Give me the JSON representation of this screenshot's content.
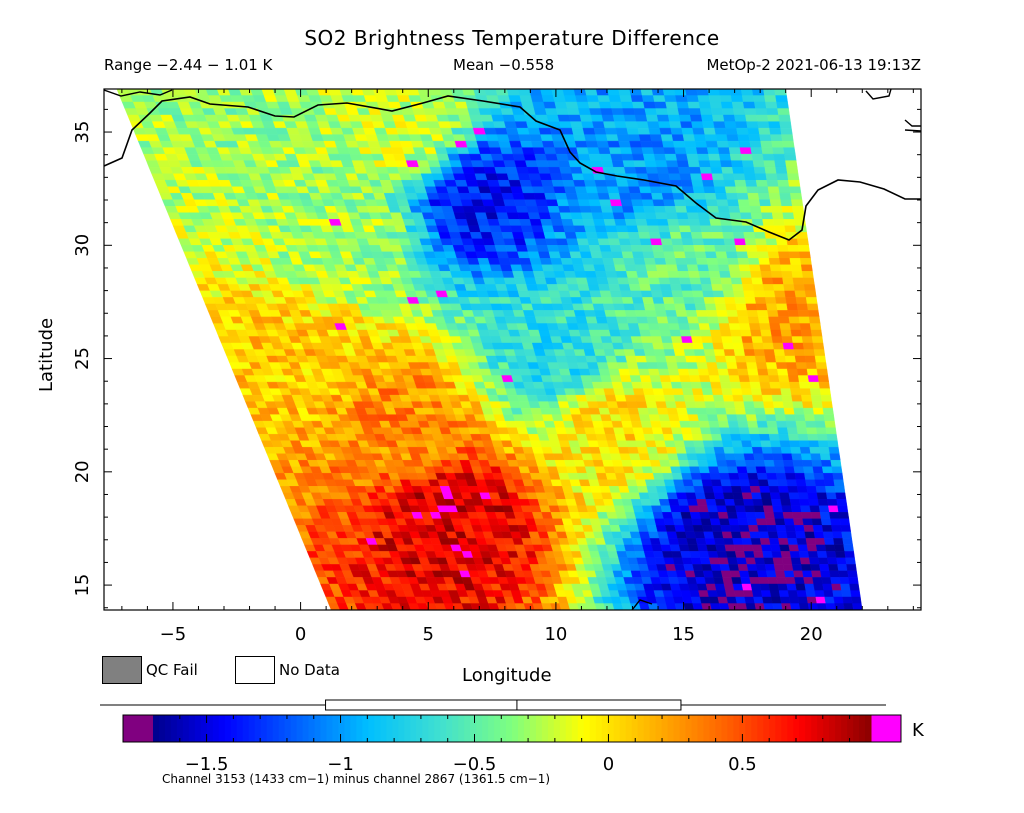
{
  "header": {
    "title": "SO2 Brightness Temperature Difference",
    "range": "Range −2.44 − 1.01 K",
    "mean": "Mean −0.558",
    "satellite": "MetOp-2 2021-06-13 19:13Z"
  },
  "axes": {
    "x_label": "Longitude",
    "y_label": "Latitude",
    "x_range": [
      -7.7,
      24.3
    ],
    "y_range": [
      13.9,
      36.9
    ],
    "x_ticks": [
      -5,
      0,
      5,
      10,
      15,
      20
    ],
    "x_tick_labels": [
      "−5",
      "0",
      "5",
      "10",
      "15",
      "20"
    ],
    "y_ticks": [
      15,
      20,
      25,
      30,
      35
    ],
    "y_tick_labels": [
      "15",
      "20",
      "25",
      "30",
      "35"
    ]
  },
  "legend": {
    "qc_fail": "QC Fail",
    "no_data": "No Data",
    "qc_fail_color": "#808080",
    "no_data_color": "#ffffff"
  },
  "colorbar": {
    "unit": "K",
    "ticks": [
      -1.5,
      -1,
      -0.5,
      0,
      0.5
    ],
    "tick_labels": [
      "−1.5",
      "−1",
      "−0.5",
      "0",
      "0.5"
    ],
    "under_color": "#800080",
    "over_color": "#ff00ff",
    "colors": [
      "#00008b",
      "#0000ff",
      "#0060ff",
      "#00bfff",
      "#40e0d0",
      "#7fff7f",
      "#ffff00",
      "#ffb000",
      "#ff6000",
      "#ff0000",
      "#8b0000"
    ],
    "min": -1.7,
    "max": 0.98
  },
  "boxplot": {
    "whisker_low": -2.44,
    "q1": -1.45,
    "median": -0.61,
    "q3": 0.11,
    "whisker_high": 1.01
  },
  "footer": {
    "channel_note": "Channel 3153 (1433 cm−1) minus channel 2867 (1361.5 cm−1)"
  },
  "chart_data": {
    "type": "heatmap",
    "title": "SO2 Brightness Temperature Difference",
    "xlabel": "Longitude",
    "ylabel": "Latitude",
    "xlim": [
      -7.7,
      24.3
    ],
    "ylim": [
      13.9,
      36.9
    ],
    "swath_corners_lonlat": [
      [
        -7.2,
        36.9
      ],
      [
        19.0,
        36.9
      ],
      [
        22.0,
        13.9
      ],
      [
        1.2,
        13.9
      ]
    ],
    "value_range": [
      -2.44,
      1.01
    ],
    "mean": -0.558,
    "unit": "K",
    "features": [
      {
        "lon": 6.0,
        "lat": 18.0,
        "value": 0.8
      },
      {
        "lon": 4.0,
        "lat": 22.0,
        "value": 0.3
      },
      {
        "lon": 0.0,
        "lat": 25.0,
        "value": 0.1
      },
      {
        "lon": 10.0,
        "lat": 25.0,
        "value": -0.7
      },
      {
        "lon": 12.0,
        "lat": 22.0,
        "value": 0.0
      },
      {
        "lon": 17.0,
        "lat": 17.0,
        "value": -1.6
      },
      {
        "lon": 7.0,
        "lat": 32.0,
        "value": -1.4
      },
      {
        "lon": 13.0,
        "lat": 33.0,
        "value": -1.0
      },
      {
        "lon": 2.0,
        "lat": 30.0,
        "value": -0.3
      },
      {
        "lon": 19.0,
        "lat": 27.0,
        "value": 0.2
      },
      {
        "lon": 15.0,
        "lat": 29.0,
        "value": -0.5
      },
      {
        "lon": 4.0,
        "lat": 35.0,
        "value": -0.2
      }
    ]
  }
}
